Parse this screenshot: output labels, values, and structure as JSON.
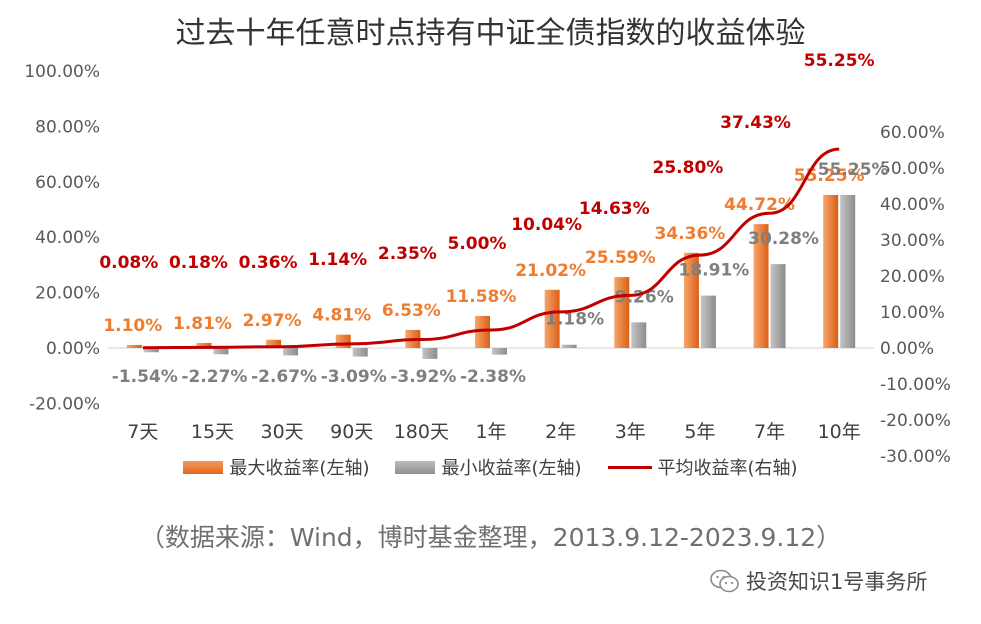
{
  "title": "过去十年任意时点持有中证全债指数的收益体验",
  "source_note": "（数据来源：Wind，博时基金整理，2013.9.12-2023.9.12）",
  "watermark": "投资知识1号事务所",
  "colors": {
    "max_bar": "#ED7D31",
    "min_bar": "#A5A5A5",
    "avg_line": "#C00000",
    "max_label": "#ED7D31",
    "min_label": "#7F7F7F",
    "avg_label": "#C00000",
    "axis_text": "#595959"
  },
  "chart_data": {
    "type": "bar",
    "categories": [
      "7天",
      "15天",
      "30天",
      "90天",
      "180天",
      "1年",
      "2年",
      "3年",
      "5年",
      "7年",
      "10年"
    ],
    "series": [
      {
        "name": "最大收益率(左轴)",
        "kind": "bar",
        "axis": "left",
        "values": [
          1.1,
          1.81,
          2.97,
          4.81,
          6.53,
          11.58,
          21.02,
          25.59,
          34.36,
          44.72,
          55.25
        ],
        "labels": [
          "1.10%",
          "1.81%",
          "2.97%",
          "4.81%",
          "6.53%",
          "11.58%",
          "21.02%",
          "25.59%",
          "34.36%",
          "44.72%",
          "55.25%"
        ]
      },
      {
        "name": "最小收益率(左轴)",
        "kind": "bar",
        "axis": "left",
        "values": [
          -1.54,
          -2.27,
          -2.67,
          -3.09,
          -3.92,
          -2.38,
          1.18,
          9.26,
          18.91,
          30.28,
          55.25
        ],
        "labels": [
          "-1.54%",
          "-2.27%",
          "-2.67%",
          "-3.09%",
          "-3.92%",
          "-2.38%",
          "1.18%",
          "9.26%",
          "18.91%",
          "30.28%",
          "55.25%"
        ]
      },
      {
        "name": "平均收益率(右轴)",
        "kind": "line",
        "axis": "right",
        "values": [
          0.08,
          0.18,
          0.36,
          1.14,
          2.35,
          5.0,
          10.04,
          14.63,
          25.8,
          37.43,
          55.25
        ],
        "labels": [
          "0.08%",
          "0.18%",
          "0.36%",
          "1.14%",
          "2.35%",
          "5.00%",
          "10.04%",
          "14.63%",
          "25.80%",
          "37.43%",
          "55.25%"
        ]
      }
    ],
    "y_left": {
      "range": [
        -20,
        100
      ],
      "ticks": [
        "-20.00%",
        "0.00%",
        "20.00%",
        "40.00%",
        "60.00%",
        "80.00%",
        "100.00%"
      ]
    },
    "y_right": {
      "range": [
        -30,
        60
      ],
      "ticks": [
        "-30.00%",
        "-20.00%",
        "-10.00%",
        "0.00%",
        "10.00%",
        "20.00%",
        "30.00%",
        "40.00%",
        "50.00%",
        "60.00%"
      ]
    },
    "grid": false,
    "legend_position": "bottom"
  }
}
